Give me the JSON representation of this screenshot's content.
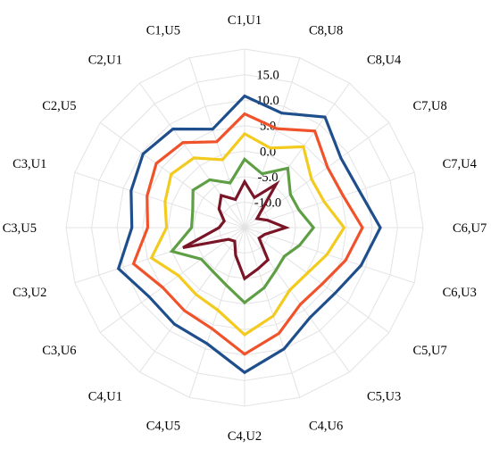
{
  "chart_data": {
    "type": "radar",
    "categories": [
      "C1,U1",
      "C8,U8",
      "C8,U4",
      "C7,U8",
      "C7,U4",
      "C6,U7",
      "C6,U3",
      "C5,U7",
      "C5,U3",
      "C4,U6",
      "C4,U2",
      "C4,U5",
      "C4,U1",
      "C3,U6",
      "C3,U2",
      "C3,U5",
      "C3,U1",
      "C2,U5",
      "C2,U1",
      "C1,U5"
    ],
    "rlim": [
      -15,
      20
    ],
    "ticks": [
      -10,
      -5,
      0,
      5,
      10,
      15
    ],
    "tick_labels": [
      "-10.0",
      "-5.0",
      "0.0",
      "5.0",
      "10.0",
      "15.0"
    ],
    "grid": true,
    "series": [
      {
        "color": "#1F4E8C",
        "values": [
          10.8,
          8.6,
          11.8,
          8.3,
          8.6,
          11.6,
          9.0,
          6.9,
          6.8,
          10.0,
          13.4,
          8.9,
          8.4,
          8.1,
          11.0,
          7.1,
          8.4,
          9.6,
          8.9,
          5.3
        ]
      },
      {
        "color": "#F0532B",
        "values": [
          7.3,
          5.4,
          8.4,
          5.1,
          5.3,
          8.1,
          5.8,
          3.8,
          3.6,
          6.8,
          9.8,
          5.8,
          5.1,
          4.9,
          7.9,
          4.0,
          5.1,
          6.4,
          5.6,
          2.7
        ]
      },
      {
        "color": "#F3CA1E",
        "values": [
          3.4,
          1.4,
          4.6,
          1.2,
          1.4,
          4.5,
          2.0,
          0.2,
          0.1,
          3.2,
          6.0,
          2.0,
          1.2,
          1.0,
          4.2,
          0.3,
          1.4,
          2.8,
          1.9,
          -1.0
        ]
      },
      {
        "color": "#5E9E44",
        "values": [
          -1.6,
          -3.9,
          -0.6,
          -3.9,
          -3.8,
          -1.5,
          -3.7,
          -5.4,
          -4.6,
          -2.6,
          -0.3,
          -3.2,
          -4.4,
          -4.5,
          0.0,
          -4.6,
          -4.3,
          -2.5,
          -3.4,
          -5.8
        ]
      },
      {
        "color": "#7A1527",
        "values": [
          -6.0,
          -8.8,
          -4.5,
          -12.0,
          -10.3,
          -6.9,
          -10.8,
          -11.5,
          -7.2,
          -6.5,
          -5.0,
          -9.3,
          -11.7,
          -11.1,
          -2.3,
          -10.0,
          -10.8,
          -8.8,
          -7.2,
          -9.2
        ]
      }
    ]
  }
}
